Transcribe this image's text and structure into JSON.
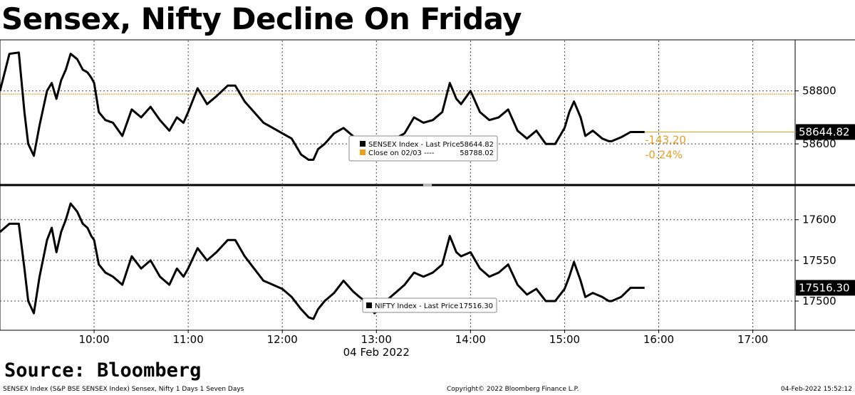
{
  "title": "Sensex, Nifty Decline On Friday",
  "source": "Source: Bloomberg",
  "footer": {
    "left": "SENSEX Index (S&P BSE SENSEX Index) Sensex, Nifty 1 Days 1 Seven Days",
    "center": "Copyright© 2022 Bloomberg Finance L.P.",
    "right": "04-Feb-2022 15:52:12"
  },
  "colors": {
    "line": "#000000",
    "close_line": "#e8a020",
    "change_text": "#e8a020",
    "grid": "#444444"
  },
  "chart_data": [
    {
      "type": "line",
      "name": "SENSEX",
      "x_unit": "hours (IST)",
      "xlim": [
        9.0,
        17.45
      ],
      "ylim": [
        58450,
        58990
      ],
      "yticks": [
        58600,
        58800
      ],
      "ytick_labels": [
        "58600",
        "58800"
      ],
      "last_price": 58644.82,
      "last_price_label": "58644.82",
      "previous_close": 58788.02,
      "change_label": "-143.20",
      "change_pct_label": "-0.24%",
      "legend": {
        "series_label": "SENSEX Index - Last Price",
        "series_value": "58644.82",
        "close_label": "Close on 02/03 ----",
        "close_value": "58788.02"
      },
      "series": [
        {
          "name": "SENSEX Index - Last Price",
          "x": [
            9.0,
            9.1,
            9.2,
            9.26,
            9.3,
            9.36,
            9.42,
            9.5,
            9.55,
            9.6,
            9.65,
            9.7,
            9.75,
            9.82,
            9.88,
            9.93,
            9.97,
            10.0,
            10.05,
            10.12,
            10.2,
            10.3,
            10.4,
            10.5,
            10.6,
            10.7,
            10.8,
            10.88,
            10.95,
            11.0,
            11.1,
            11.2,
            11.3,
            11.42,
            11.5,
            11.6,
            11.7,
            11.8,
            11.9,
            12.0,
            12.1,
            12.2,
            12.28,
            12.33,
            12.38,
            12.45,
            12.55,
            12.65,
            12.75,
            12.82,
            12.88,
            12.93,
            12.98,
            13.03,
            13.1,
            13.2,
            13.3,
            13.4,
            13.5,
            13.6,
            13.7,
            13.78,
            13.85,
            13.9,
            14.0,
            14.1,
            14.2,
            14.3,
            14.4,
            14.5,
            14.6,
            14.7,
            14.8,
            14.9,
            15.0,
            15.05,
            15.1,
            15.17,
            15.22,
            15.3,
            15.4,
            15.47,
            15.5,
            15.6,
            15.7,
            15.8,
            15.85
          ],
          "y": [
            58800,
            58940,
            58945,
            58720,
            58600,
            58555,
            58670,
            58800,
            58830,
            58770,
            58840,
            58880,
            58940,
            58920,
            58880,
            58870,
            58850,
            58830,
            58720,
            58690,
            58680,
            58630,
            58730,
            58700,
            58740,
            58690,
            58650,
            58700,
            58680,
            58720,
            58810,
            58750,
            58780,
            58820,
            58820,
            58760,
            58720,
            58680,
            58660,
            58640,
            58620,
            58560,
            58540,
            58540,
            58580,
            58600,
            58640,
            58660,
            58630,
            58600,
            58580,
            58560,
            58540,
            58555,
            58580,
            58620,
            58640,
            58700,
            58680,
            58690,
            58720,
            58830,
            58770,
            58750,
            58800,
            58720,
            58690,
            58700,
            58730,
            58650,
            58620,
            58650,
            58600,
            58600,
            58660,
            58720,
            58760,
            58700,
            58630,
            58650,
            58620,
            58610,
            58610,
            58625,
            58644.82,
            58644.82,
            58644.82
          ]
        }
      ]
    },
    {
      "type": "line",
      "name": "NIFTY",
      "x_unit": "hours (IST)",
      "xlim": [
        9.0,
        17.45
      ],
      "ylim": [
        17465,
        17640
      ],
      "yticks": [
        17500,
        17550,
        17600
      ],
      "ytick_labels": [
        "17500",
        "17550",
        "17600"
      ],
      "last_price": 17516.3,
      "last_price_label": "17516.30",
      "legend": {
        "series_label": "NIFTY Index - Last Price",
        "series_value": "17516.30"
      },
      "xticks": [
        10,
        11,
        12,
        13,
        14,
        15,
        16,
        17
      ],
      "xtick_labels": [
        "10:00",
        "11:00",
        "12:00",
        "13:00",
        "14:00",
        "15:00",
        "16:00",
        "17:00"
      ],
      "xlabel": "04 Feb 2022",
      "series": [
        {
          "name": "NIFTY Index - Last Price",
          "x": [
            9.0,
            9.1,
            9.2,
            9.26,
            9.3,
            9.36,
            9.42,
            9.5,
            9.55,
            9.6,
            9.65,
            9.7,
            9.75,
            9.82,
            9.88,
            9.93,
            9.97,
            10.0,
            10.05,
            10.12,
            10.2,
            10.3,
            10.4,
            10.5,
            10.6,
            10.7,
            10.8,
            10.88,
            10.95,
            11.0,
            11.1,
            11.2,
            11.3,
            11.42,
            11.5,
            11.6,
            11.7,
            11.8,
            11.9,
            12.0,
            12.1,
            12.2,
            12.28,
            12.33,
            12.38,
            12.45,
            12.55,
            12.65,
            12.75,
            12.82,
            12.88,
            12.93,
            12.98,
            13.03,
            13.1,
            13.2,
            13.3,
            13.4,
            13.5,
            13.6,
            13.7,
            13.78,
            13.85,
            13.9,
            14.0,
            14.1,
            14.2,
            14.3,
            14.4,
            14.5,
            14.6,
            14.7,
            14.8,
            14.9,
            15.0,
            15.05,
            15.1,
            15.17,
            15.22,
            15.3,
            15.4,
            15.47,
            15.5,
            15.6,
            15.7,
            15.8,
            15.85
          ],
          "y": [
            17585,
            17595,
            17595,
            17540,
            17500,
            17485,
            17530,
            17575,
            17590,
            17560,
            17585,
            17600,
            17620,
            17610,
            17595,
            17590,
            17580,
            17575,
            17545,
            17535,
            17530,
            17520,
            17555,
            17540,
            17550,
            17530,
            17520,
            17540,
            17530,
            17540,
            17565,
            17550,
            17560,
            17575,
            17575,
            17555,
            17540,
            17525,
            17520,
            17515,
            17505,
            17490,
            17480,
            17478,
            17490,
            17500,
            17510,
            17525,
            17512,
            17505,
            17500,
            17495,
            17485,
            17490,
            17500,
            17510,
            17520,
            17535,
            17530,
            17535,
            17545,
            17580,
            17560,
            17555,
            17560,
            17540,
            17530,
            17535,
            17545,
            17520,
            17508,
            17515,
            17500,
            17500,
            17515,
            17530,
            17548,
            17525,
            17505,
            17510,
            17505,
            17500,
            17500,
            17505,
            17516.3,
            17516.3,
            17516.3
          ]
        }
      ]
    }
  ]
}
